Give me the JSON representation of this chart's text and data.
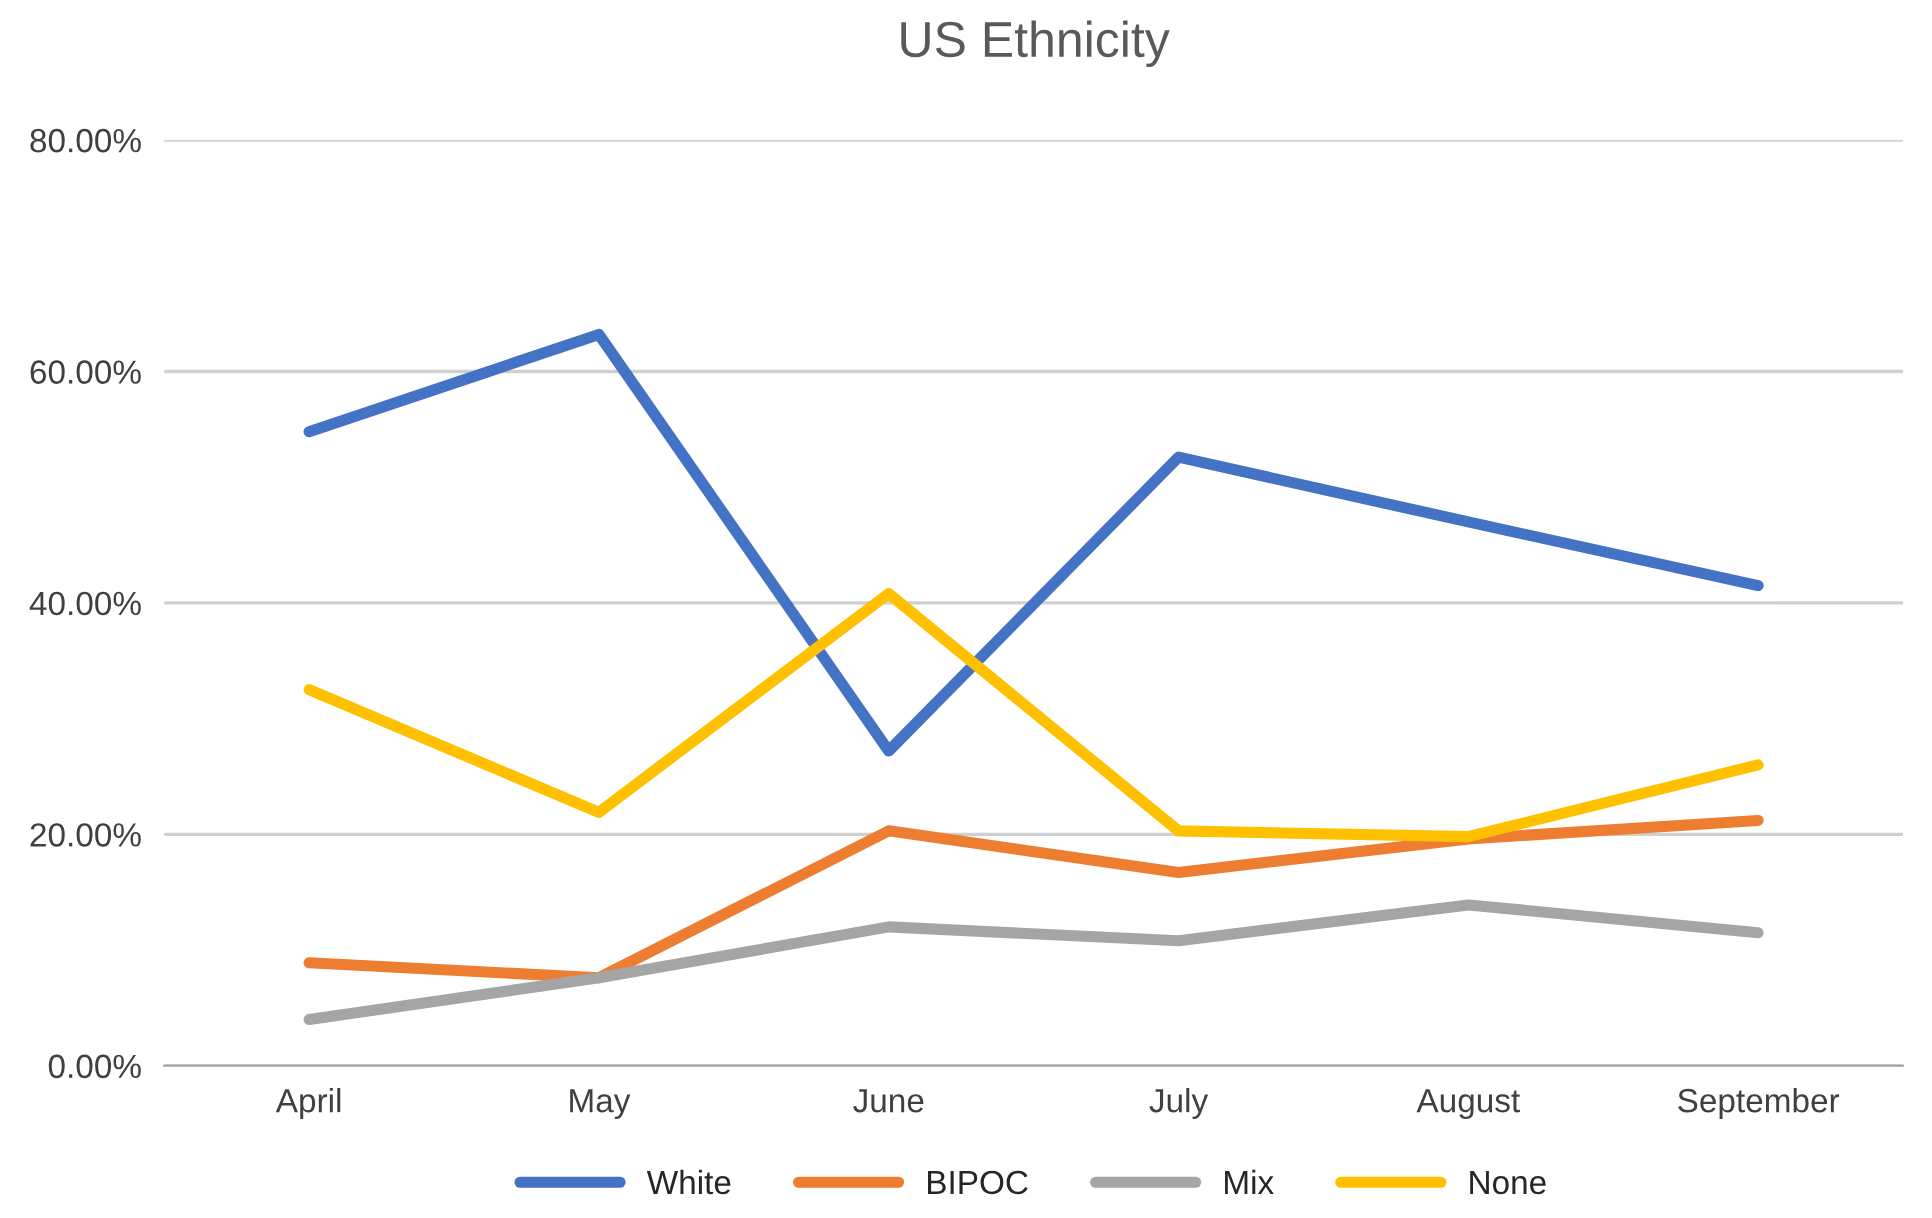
{
  "chart_data": {
    "type": "line",
    "title": "US Ethnicity",
    "categories": [
      "April",
      "May",
      "June",
      "July",
      "August",
      "September"
    ],
    "series": [
      {
        "name": "White",
        "color": "#4472c4",
        "values": [
          54.8,
          63.2,
          27.2,
          52.6,
          47.0,
          41.5
        ]
      },
      {
        "name": "BIPOC",
        "color": "#ed7d31",
        "values": [
          8.9,
          7.6,
          20.3,
          16.7,
          19.6,
          21.2
        ]
      },
      {
        "name": "Mix",
        "color": "#a5a5a5",
        "values": [
          4.0,
          7.6,
          12.0,
          10.8,
          13.9,
          11.5
        ]
      },
      {
        "name": "None",
        "color": "#ffc000",
        "values": [
          32.5,
          21.9,
          40.8,
          20.3,
          19.8,
          26.0
        ]
      }
    ],
    "ylim": [
      0,
      80
    ],
    "yticks": [
      {
        "value": 0,
        "label": "0.00%"
      },
      {
        "value": 20,
        "label": "20.00%"
      },
      {
        "value": 40,
        "label": "40.00%"
      },
      {
        "value": 60,
        "label": "60.00%"
      },
      {
        "value": 80,
        "label": "80.00%"
      }
    ],
    "grid": "y",
    "legend": "bottom"
  }
}
